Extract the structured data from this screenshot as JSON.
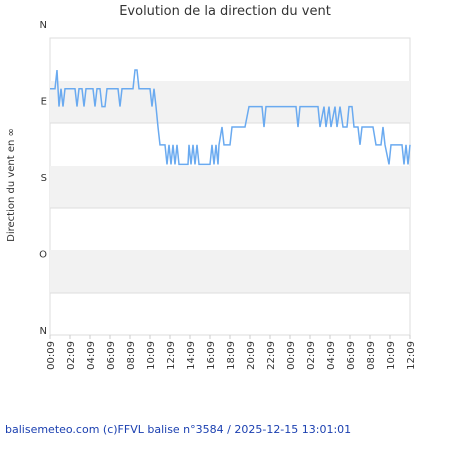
{
  "chart_data": {
    "type": "line",
    "title": "Evolution de la direction du vent",
    "y_label": "Direction du vent en ∞",
    "footer": "balisemeteo.com (c)FFVL balise n°3584 / 2025-12-15 13:01:01",
    "ylim": [
      0,
      360
    ],
    "y_inverted": true,
    "yticks": [
      {
        "value": 0,
        "label": "N"
      },
      {
        "value": 90,
        "label": "E"
      },
      {
        "value": 180,
        "label": "S"
      },
      {
        "value": 270,
        "label": "O"
      },
      {
        "value": 360,
        "label": "N"
      }
    ],
    "xlim": [
      0,
      36
    ],
    "xticks": [
      {
        "value": 0,
        "label": "00:09"
      },
      {
        "value": 2,
        "label": "02:09"
      },
      {
        "value": 4,
        "label": "04:09"
      },
      {
        "value": 6,
        "label": "06:09"
      },
      {
        "value": 8,
        "label": "08:09"
      },
      {
        "value": 10,
        "label": "10:09"
      },
      {
        "value": 12,
        "label": "12:09"
      },
      {
        "value": 14,
        "label": "14:09"
      },
      {
        "value": 16,
        "label": "16:09"
      },
      {
        "value": 18,
        "label": "18:09"
      },
      {
        "value": 20,
        "label": "20:09"
      },
      {
        "value": 22,
        "label": "22:09"
      },
      {
        "value": 24,
        "label": "00:09"
      },
      {
        "value": 26,
        "label": "02:09"
      },
      {
        "value": 28,
        "label": "04:09"
      },
      {
        "value": 30,
        "label": "06:09"
      },
      {
        "value": 32,
        "label": "08:09"
      },
      {
        "value": 34,
        "label": "10:09"
      },
      {
        "value": 36,
        "label": "12:09"
      }
    ],
    "series": [
      {
        "color": "#6aaaf0",
        "x": [
          0,
          0.5,
          0.7,
          0.9,
          1.1,
          1.3,
          1.5,
          2.5,
          2.7,
          2.9,
          3.2,
          3.4,
          3.6,
          4.3,
          4.5,
          4.7,
          5.0,
          5.2,
          5.5,
          5.7,
          6.8,
          7.0,
          7.2,
          8.3,
          8.5,
          8.7,
          8.9,
          10.0,
          10.2,
          10.4,
          10.6,
          10.8,
          11.0,
          11.5,
          11.7,
          11.9,
          12.1,
          12.3,
          12.5,
          12.7,
          12.9,
          13.8,
          13.9,
          14.1,
          14.3,
          14.5,
          14.7,
          14.9,
          16.0,
          16.2,
          16.4,
          16.6,
          16.8,
          16.9,
          17.2,
          17.4,
          18.0,
          18.2,
          19.5,
          19.9,
          21.2,
          21.4,
          21.6,
          24.6,
          24.8,
          25.0,
          26.8,
          27.0,
          27.4,
          27.6,
          27.9,
          28.1,
          28.5,
          28.7,
          29.0,
          29.3,
          29.7,
          29.9,
          30.2,
          30.4,
          30.8,
          31.0,
          31.2,
          32.3,
          32.6,
          33.1,
          33.3,
          33.5,
          33.9,
          34.1,
          35.2,
          35.4,
          35.6,
          35.8,
          36.0
        ],
        "values": [
          75,
          75,
          53,
          96,
          75,
          96,
          75,
          75,
          96,
          75,
          75,
          96,
          75,
          75,
          96,
          75,
          75,
          96,
          96,
          75,
          75,
          96,
          75,
          75,
          53,
          53,
          75,
          75,
          96,
          75,
          96,
          120,
          141,
          141,
          164,
          141,
          164,
          141,
          164,
          141,
          164,
          164,
          141,
          164,
          141,
          164,
          141,
          164,
          164,
          141,
          164,
          141,
          164,
          141,
          120,
          141,
          141,
          120,
          120,
          96,
          96,
          120,
          96,
          96,
          120,
          96,
          96,
          120,
          96,
          120,
          96,
          120,
          96,
          120,
          96,
          120,
          120,
          96,
          96,
          120,
          120,
          141,
          120,
          120,
          141,
          141,
          120,
          141,
          164,
          141,
          141,
          164,
          141,
          164,
          141
        ]
      }
    ]
  }
}
